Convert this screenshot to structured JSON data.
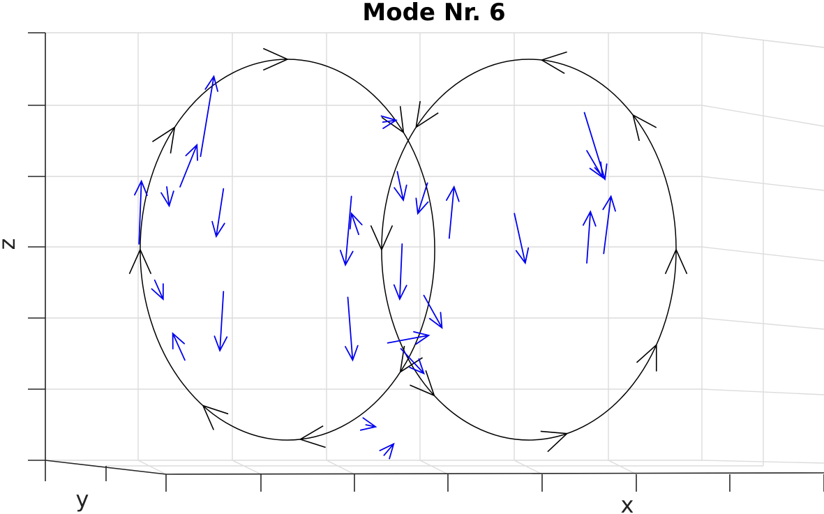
{
  "chart_data": {
    "type": "3d-quiver",
    "title": "Mode Nr. 6",
    "xlabel": "x",
    "ylabel": "y",
    "zlabel": "z",
    "grid": true,
    "colors": {
      "loops": "#000000",
      "vectors": "#0000ee",
      "grid": "#dcdcdc",
      "axes": "#262626"
    },
    "loops": [
      {
        "center": [
          -1,
          0
        ],
        "radii": [
          1,
          1
        ],
        "arrow_angles_deg": [
          90,
          140,
          180,
          235,
          275,
          320,
          38
        ]
      },
      {
        "center": [
          1,
          0
        ],
        "radii": [
          1,
          1
        ],
        "arrow_angles_deg": [
          85,
          45,
          0,
          330,
          285,
          230,
          180,
          140
        ]
      }
    ],
    "vectors": [
      {
        "x": -1.72,
        "z": 0.49,
        "dx": 0.11,
        "dz": 0.42
      },
      {
        "x": -1.89,
        "z": 0.33,
        "dx": 0.14,
        "dz": 0.22
      },
      {
        "x": -1.53,
        "z": 0.32,
        "dx": -0.06,
        "dz": -0.25
      },
      {
        "x": -1.53,
        "z": -0.22,
        "dx": -0.03,
        "dz": -0.31
      },
      {
        "x": -2.23,
        "z": 0.03,
        "dx": 0.02,
        "dz": 0.33
      },
      {
        "x": -2.1,
        "z": -0.16,
        "dx": 0.07,
        "dz": -0.1
      },
      {
        "x": -2.0,
        "z": 0.33,
        "dx": 0.02,
        "dz": -0.1
      },
      {
        "x": -1.85,
        "z": -0.58,
        "dx": -0.1,
        "dz": 0.14
      },
      {
        "x": -0.47,
        "z": 0.28,
        "dx": -0.05,
        "dz": -0.36
      },
      {
        "x": -0.5,
        "z": -0.25,
        "dx": 0.04,
        "dz": -0.33
      },
      {
        "x": -0.41,
        "z": 0.08,
        "dx": -0.06,
        "dz": 0.11
      },
      {
        "x": -0.21,
        "z": 0.67,
        "dx": 0.11,
        "dz": 0.01
      },
      {
        "x": -0.09,
        "z": 0.41,
        "dx": 0.05,
        "dz": -0.15
      },
      {
        "x": -0.05,
        "z": 0.03,
        "dx": -0.02,
        "dz": -0.29
      },
      {
        "x": 0.16,
        "z": 0.35,
        "dx": -0.08,
        "dz": -0.16
      },
      {
        "x": -0.17,
        "z": -0.49,
        "dx": 0.34,
        "dz": 0.04
      },
      {
        "x": -0.06,
        "z": -0.52,
        "dx": 0.19,
        "dz": -0.13
      },
      {
        "x": 0.13,
        "z": -0.24,
        "dx": 0.15,
        "dz": -0.17
      },
      {
        "x": -0.35,
        "z": -0.92,
        "dx": 0.08,
        "dz": -0.01
      },
      {
        "x": -0.2,
        "z": -1.08,
        "dx": 0.08,
        "dz": 0.06
      },
      {
        "x": 0.34,
        "z": 0.06,
        "dx": 0.04,
        "dz": 0.27
      },
      {
        "x": 0.88,
        "z": 0.19,
        "dx": 0.09,
        "dz": -0.26
      },
      {
        "x": 1.48,
        "z": -0.07,
        "dx": 0.03,
        "dz": 0.27
      },
      {
        "x": 1.46,
        "z": 0.72,
        "dx": 0.17,
        "dz": -0.35
      },
      {
        "x": 1.48,
        "z": 0.52,
        "dx": 0.13,
        "dz": -0.14
      },
      {
        "x": 1.62,
        "z": -0.02,
        "dx": 0.06,
        "dz": 0.3
      }
    ]
  }
}
